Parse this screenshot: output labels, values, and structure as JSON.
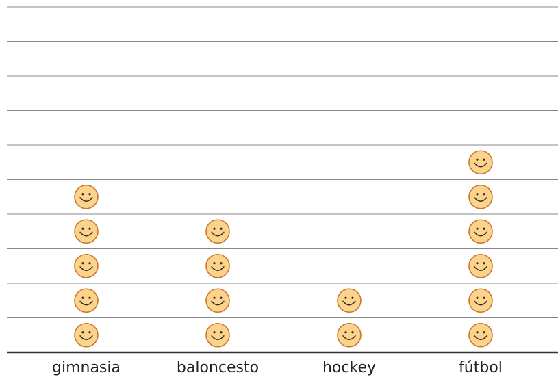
{
  "chart_data": {
    "type": "pictograph",
    "categories": [
      "gimnasia",
      "baloncesto",
      "hockey",
      "fútbol"
    ],
    "values": [
      5,
      4,
      2,
      6
    ],
    "color": "#fcd38c",
    "ylim": [
      0,
      10
    ],
    "yticks": [
      0,
      1,
      2,
      3,
      4,
      5,
      6,
      7,
      8,
      9,
      10
    ],
    "grid": true
  }
}
